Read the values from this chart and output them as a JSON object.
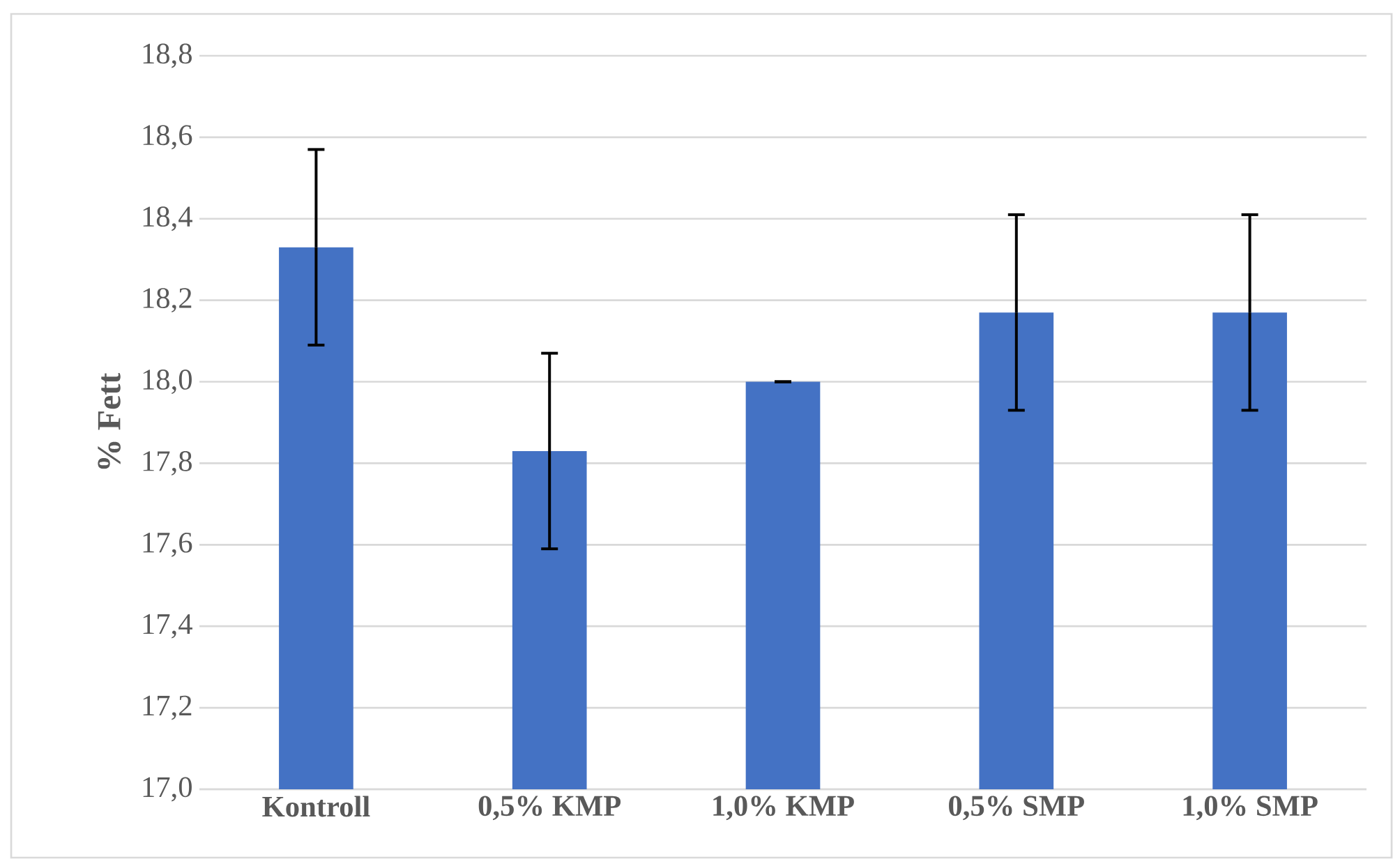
{
  "chart_data": {
    "type": "bar",
    "ylabel": "% Fett",
    "categories": [
      "Kontroll",
      "0,5% KMP",
      "1,0% KMP",
      "0,5% SMP",
      "1,0% SMP"
    ],
    "values": [
      18.33,
      17.83,
      18.0,
      18.17,
      18.17
    ],
    "errors": [
      0.24,
      0.24,
      0,
      0.24,
      0.24
    ],
    "color": "#4472c4",
    "ylim": [
      17.0,
      18.8
    ],
    "yticks": [
      {
        "value": 17.0,
        "label": "17,0"
      },
      {
        "value": 17.2,
        "label": "17,2"
      },
      {
        "value": 17.4,
        "label": "17,4"
      },
      {
        "value": 17.6,
        "label": "17,6"
      },
      {
        "value": 17.8,
        "label": "17,8"
      },
      {
        "value": 18.0,
        "label": "18,0"
      },
      {
        "value": 18.2,
        "label": "18,2"
      },
      {
        "value": 18.4,
        "label": "18,4"
      },
      {
        "value": 18.6,
        "label": "18,6"
      },
      {
        "value": 18.8,
        "label": "18,8"
      }
    ],
    "grid": "y"
  }
}
